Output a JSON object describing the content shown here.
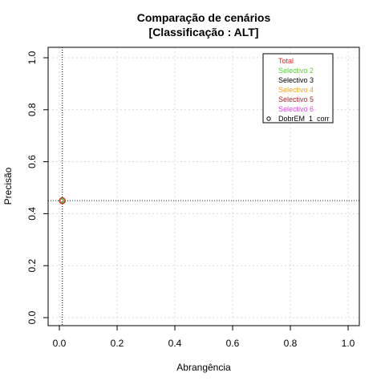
{
  "chart_data": {
    "type": "scatter",
    "title": "Comparação de cenários",
    "subtitle": "[Classificação : ALT]",
    "xlabel": "Abrangência",
    "ylabel": "Precisão",
    "xlim": [
      0,
      1
    ],
    "ylim": [
      0,
      1
    ],
    "xticks": [
      "0.0",
      "0.2",
      "0.4",
      "0.6",
      "0.8",
      "1.0"
    ],
    "yticks": [
      "0.0",
      "0.2",
      "0.4",
      "0.6",
      "0.8",
      "1.0"
    ],
    "grid": true,
    "legend_position": "top-right",
    "legend": [
      {
        "label": "Total",
        "color": "#e8251f",
        "marker": false
      },
      {
        "label": "Selectivo 2",
        "color": "#55d42b",
        "marker": false
      },
      {
        "label": "Selectivo 3",
        "color": "#000000",
        "marker": false
      },
      {
        "label": "Selectivo 4",
        "color": "#f2a21a",
        "marker": false
      },
      {
        "label": "Selectivo 5",
        "color": "#a52a2a",
        "marker": false
      },
      {
        "label": "Selectivo 6",
        "color": "#e040ea",
        "marker": false
      },
      {
        "label": "DobrEM_1_corr",
        "color": "#000000",
        "marker": true
      }
    ],
    "series": [
      {
        "name": "DobrEM_1_corr",
        "x": [
          0.01
        ],
        "y": [
          0.45
        ],
        "colors": [
          "#a52a2a",
          "#e8251f",
          "#55d42b"
        ]
      }
    ],
    "reference_lines": {
      "vertical_x": 0.01,
      "horizontal_y": 0.45
    }
  }
}
